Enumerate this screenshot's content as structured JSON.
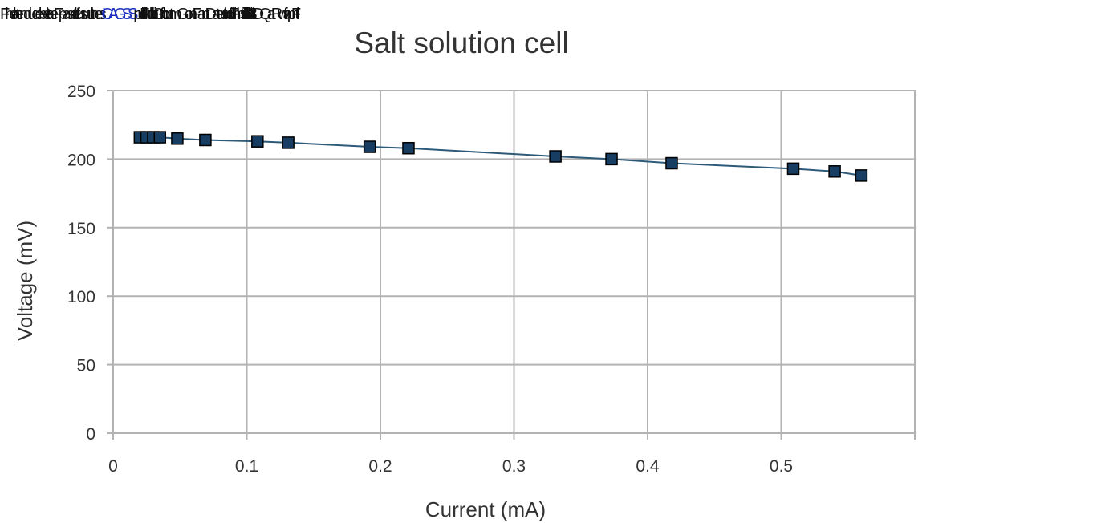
{
  "header": {
    "garbled_segments": [
      "Fhe lat enduce bet the Fpaselt etfus uuthes ",
      "ICAGSS",
      " pu.fiFlk ull.u lnt.iGfn...lo.ut.m.Gon Fant ",
      "Date",
      " ult ud.iFlnhurtl ali /ilitsP.dt /i3DQaRwifapFlt"
    ]
  },
  "colors": {
    "line": "#2c5a78",
    "marker": "#173d63",
    "marker_stroke": "#000000",
    "grid": "#b3b3b3",
    "axis": "#b3b3b3",
    "text": "#333333"
  },
  "chart_data": {
    "type": "scatter",
    "title": "Salt solution cell",
    "xlabel": "Current (mA)",
    "ylabel": "Voltage (mV)",
    "xlim": [
      0,
      0.6
    ],
    "ylim": [
      0,
      250
    ],
    "xticks": [
      "0",
      "0.1",
      "0.2",
      "0.3",
      "0.4",
      "0.5"
    ],
    "xtick_values": [
      0,
      0.1,
      0.2,
      0.3,
      0.4,
      0.5
    ],
    "yticks": [
      "0",
      "50",
      "100",
      "150",
      "200",
      "250"
    ],
    "ytick_values": [
      0,
      50,
      100,
      150,
      200,
      250
    ],
    "grid": true,
    "legend": "none",
    "marker": "square",
    "connect_points": true,
    "series": [
      {
        "x": [
          0.02,
          0.025,
          0.03,
          0.035,
          0.048,
          0.069,
          0.108,
          0.131,
          0.192,
          0.221,
          0.331,
          0.373,
          0.418,
          0.509,
          0.54,
          0.56
        ],
        "y": [
          216,
          216,
          216,
          216,
          215,
          214,
          213,
          212,
          209,
          208,
          202,
          200,
          197,
          193,
          191,
          188
        ]
      }
    ]
  }
}
